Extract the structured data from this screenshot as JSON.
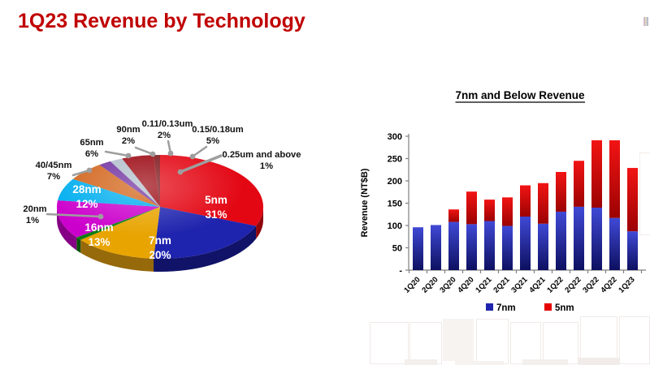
{
  "header": {
    "title": "1Q23 Revenue by Technology",
    "title_color": "#C00000"
  },
  "pie": {
    "internal_label_color": "#FFFFFF",
    "external_label_color": "#111111",
    "leader_color": "#9E9E9E"
  },
  "bar": {
    "title": "7nm and Below Revenue",
    "ylabel": "Revenue (NT$B)",
    "ytick_labels": [
      "300",
      "250",
      "200",
      "150",
      "100",
      "50",
      "-"
    ],
    "legend": [
      {
        "label": "7nm",
        "color": "#1F24AE"
      },
      {
        "label": "5nm",
        "color": "#E60000"
      }
    ]
  },
  "chart_data": [
    {
      "type": "pie",
      "style": "3d",
      "title": "1Q23 Revenue by Technology",
      "unit": "% of wafer revenue",
      "start_angle_deg": 0,
      "direction": "clockwise",
      "slices": [
        {
          "label": "5nm",
          "value": 31,
          "color": "#E30613",
          "dark": "#8F060D"
        },
        {
          "label": "7nm",
          "value": 20,
          "color": "#1F24AE",
          "dark": "#101368"
        },
        {
          "label": "16nm",
          "value": 13,
          "color": "#E8A400",
          "dark": "#96690A"
        },
        {
          "label": "20nm",
          "value": 1,
          "color": "#0F7E12",
          "dark": "#0A520C"
        },
        {
          "label": "28nm",
          "value": 12,
          "color": "#CC00CC",
          "dark": "#850085"
        },
        {
          "label": "40/45nm",
          "value": 7,
          "color": "#00AEEF",
          "dark": "#03719B"
        },
        {
          "label": "65nm",
          "value": 6,
          "color": "#D2641A",
          "dark": "#8A4110"
        },
        {
          "label": "90nm",
          "value": 2,
          "color": "#7030A0",
          "dark": "#4A1F6B"
        },
        {
          "label": "0.11/0.13um",
          "value": 2,
          "color": "#B2BFCC",
          "dark": "#77838E"
        },
        {
          "label": "0.15/0.18um",
          "value": 5,
          "color": "#9B0711",
          "dark": "#63050B"
        },
        {
          "label": "0.25um and above",
          "value": 1,
          "color": "#7E1418",
          "dark": "#4E0C0F"
        }
      ]
    },
    {
      "type": "bar",
      "stacked": true,
      "title": "7nm and Below Revenue",
      "ylabel": "Revenue (NT$B)",
      "ylim": [
        0,
        300
      ],
      "ytick_step": 50,
      "zero_tick_label": "-",
      "grid": false,
      "legend_position": "bottom",
      "categories": [
        "1Q20",
        "2Q20",
        "3Q20",
        "4Q20",
        "1Q21",
        "2Q21",
        "3Q21",
        "4Q21",
        "1Q22",
        "2Q22",
        "3Q22",
        "4Q22",
        "1Q23"
      ],
      "series": [
        {
          "name": "7nm",
          "color": "#1F24AE",
          "values": [
            96,
            101,
            108,
            103,
            110,
            99,
            120,
            104,
            131,
            142,
            140,
            117,
            87
          ]
        },
        {
          "name": "5nm",
          "color": "#E60000",
          "values": [
            0,
            0,
            28,
            73,
            48,
            64,
            70,
            91,
            89,
            103,
            151,
            174,
            142
          ]
        }
      ]
    }
  ]
}
